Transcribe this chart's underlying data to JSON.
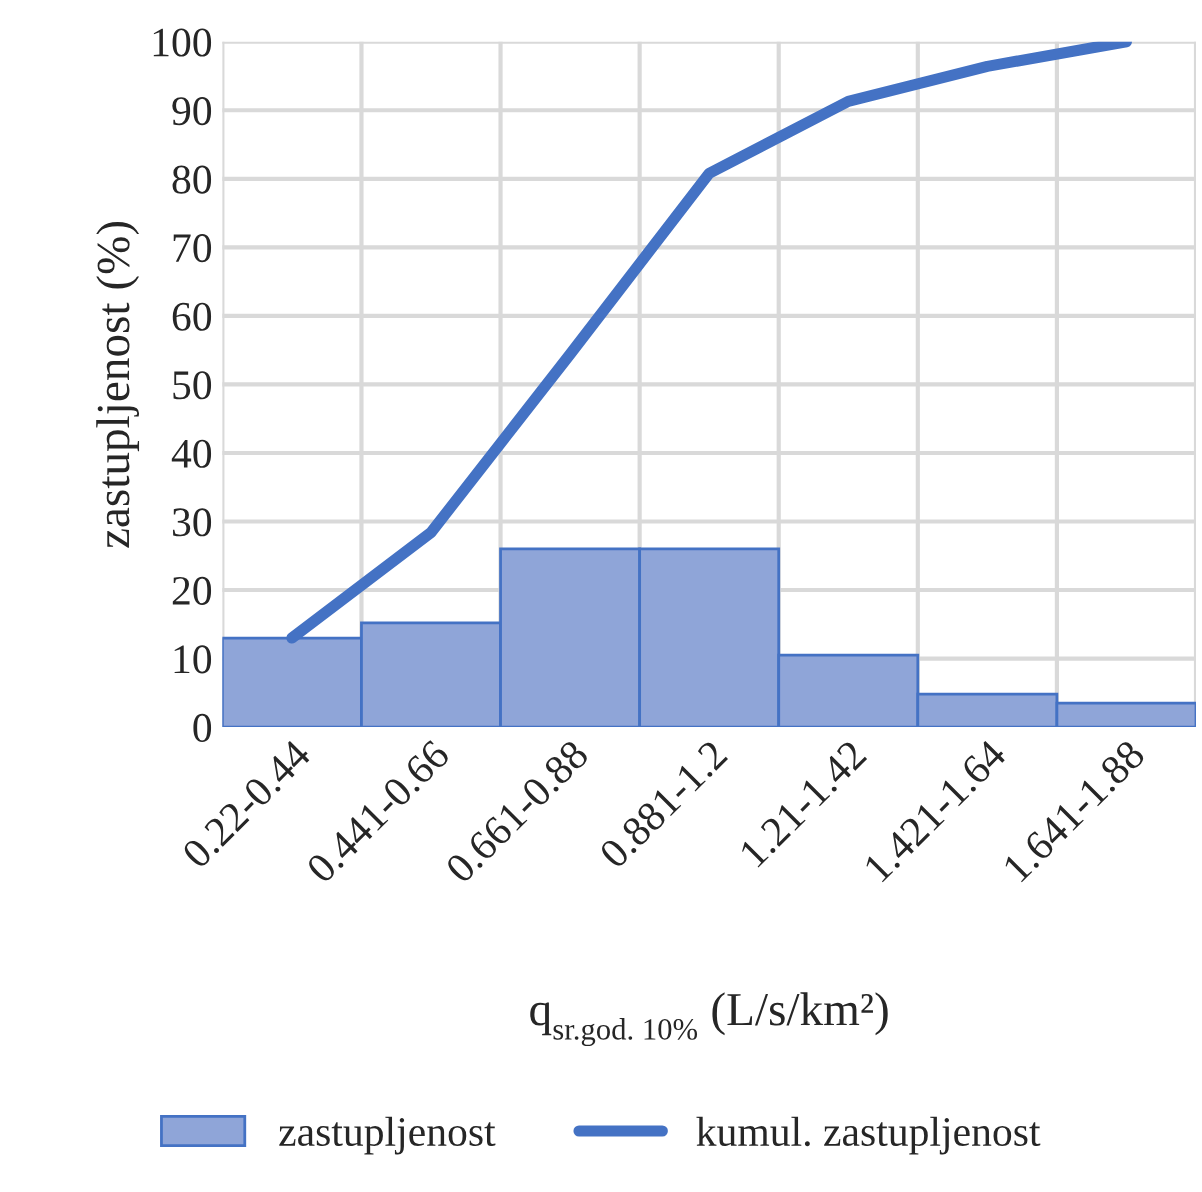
{
  "chart_data": {
    "type": "bar",
    "categories": [
      "0.22-0.44",
      "0.441-0.66",
      "0.661-0.88",
      "0.881-1.2",
      "1.21-1.42",
      "1.421-1.64",
      "1.641-1.88"
    ],
    "series": [
      {
        "name": "zastupljenost",
        "type": "bar",
        "color": "#8fa5d8",
        "values": [
          13,
          15.2,
          26,
          26,
          10.5,
          4.8,
          3.5
        ]
      },
      {
        "name": "kumul. zastupljenost",
        "type": "line",
        "color": "#4472c4",
        "values": [
          13,
          28.4,
          54.4,
          80.8,
          91.3,
          96.4,
          100
        ]
      }
    ],
    "ylabel": "zastupljenost (%)",
    "xlabel": "q$_{sr.god. 10%}$ (L/s/km²)",
    "ylim": [
      0,
      100
    ],
    "yticks": [
      0,
      10,
      20,
      30,
      40,
      50,
      60,
      70,
      80,
      90,
      100
    ],
    "grid": true,
    "legend": "bottom",
    "marker": "none",
    "line_style": "solid"
  }
}
